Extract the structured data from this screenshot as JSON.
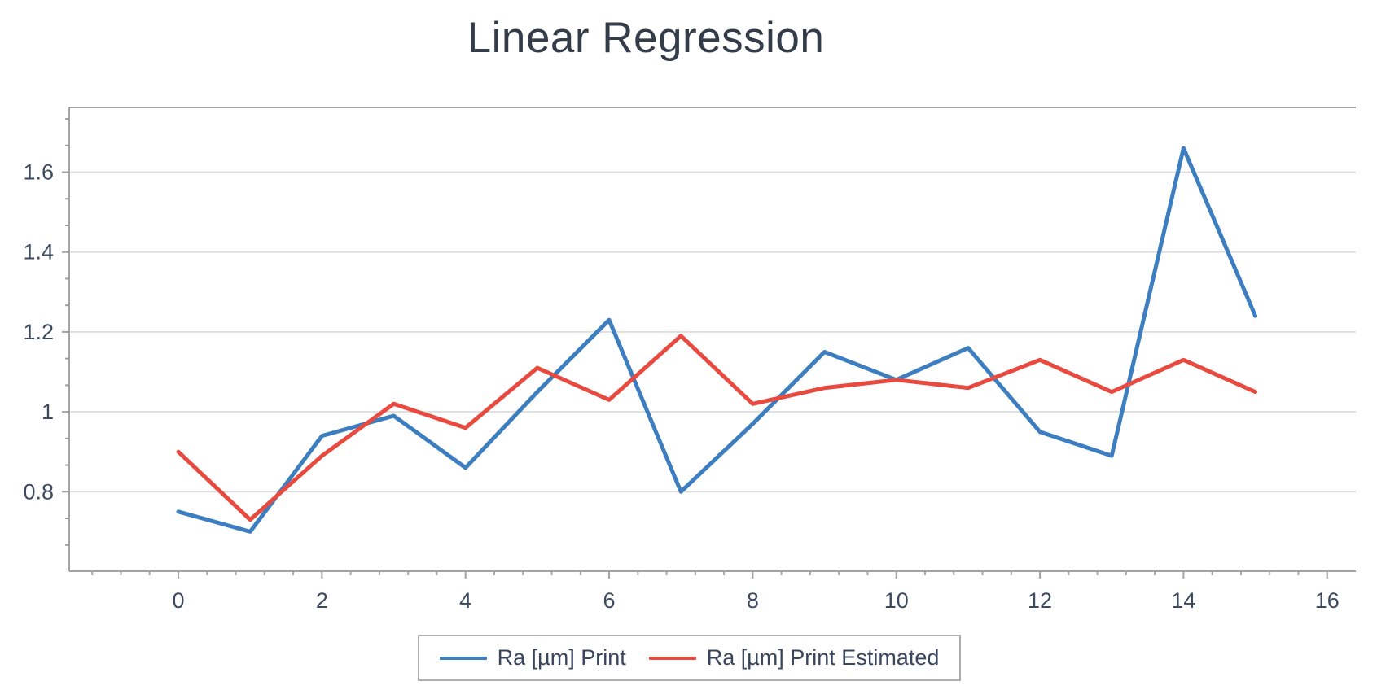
{
  "title": "Linear Regression",
  "chart_data": {
    "type": "line",
    "title": "Linear Regression",
    "x": [
      0,
      1,
      2,
      3,
      4,
      5,
      6,
      7,
      8,
      9,
      10,
      11,
      12,
      13,
      14,
      15
    ],
    "series": [
      {
        "name": "Ra [µm] Print",
        "color": "#3c7ebf",
        "values": [
          0.75,
          0.7,
          0.94,
          0.99,
          0.86,
          1.05,
          1.23,
          0.8,
          0.97,
          1.15,
          1.08,
          1.16,
          0.95,
          0.89,
          1.66,
          1.24
        ]
      },
      {
        "name": "Ra [µm] Print Estimated",
        "color": "#e84a3f",
        "values": [
          0.9,
          0.73,
          0.89,
          1.02,
          0.96,
          1.11,
          1.03,
          1.19,
          1.02,
          1.06,
          1.08,
          1.06,
          1.13,
          1.05,
          1.13,
          1.05
        ]
      }
    ],
    "xlim": [
      -1.52,
      16.4
    ],
    "ylim": [
      0.601,
      1.762
    ],
    "x_major_ticks": [
      0,
      2,
      4,
      6,
      8,
      10,
      12,
      14,
      16
    ],
    "x_tick_labels": [
      "0",
      "2",
      "4",
      "6",
      "8",
      "10",
      "12",
      "14",
      "16"
    ],
    "y_major_ticks": [
      0.8,
      1.0,
      1.2,
      1.4,
      1.6
    ],
    "y_tick_labels": [
      "0.8",
      "1",
      "1.2",
      "1.4",
      "1.6"
    ],
    "grid": "horizontal-only",
    "legend_position": "bottom"
  },
  "legend": {
    "items": [
      {
        "label": "Ra [µm] Print",
        "color": "#3c7ebf"
      },
      {
        "label": "Ra [µm] Print Estimated",
        "color": "#e84a3f"
      }
    ]
  },
  "colors": {
    "grid": "#d9d9d9",
    "axis": "#a3a3a3",
    "tick_label": "#3c4961",
    "title": "#343c49",
    "legend_border": "#aeaeae",
    "background": "#ffffff"
  }
}
